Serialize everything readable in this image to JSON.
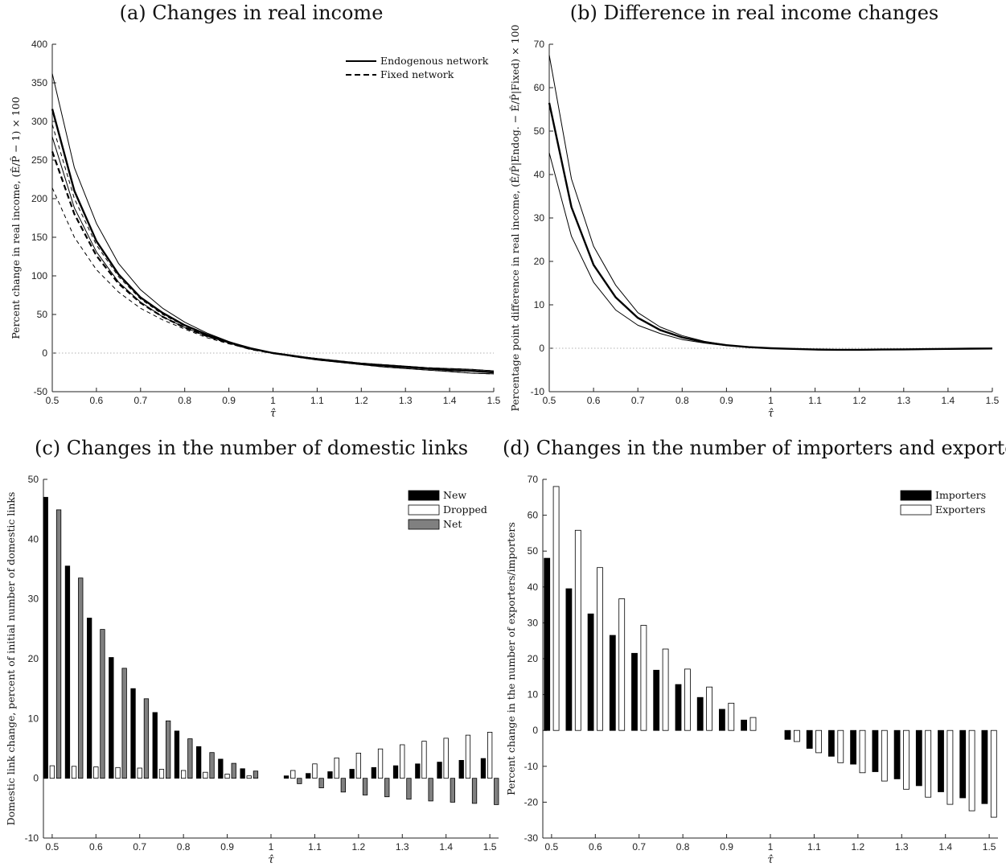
{
  "chart_data": [
    {
      "panel": "a",
      "type": "line",
      "title": "(a) Changes in real income",
      "xlabel": "τ̂",
      "ylabel": "Percent change in real income, (Ê/P̂ − 1) × 100",
      "xlim": [
        0.5,
        1.5
      ],
      "ylim": [
        -50,
        400
      ],
      "xticks": [
        0.5,
        0.6,
        0.7,
        0.8,
        0.9,
        1,
        1.1,
        1.2,
        1.3,
        1.4,
        1.5
      ],
      "yticks": [
        -50,
        0,
        50,
        100,
        150,
        200,
        250,
        300,
        350,
        400
      ],
      "legend": "top-right",
      "x": [
        0.5,
        0.55,
        0.6,
        0.65,
        0.7,
        0.75,
        0.8,
        0.85,
        0.9,
        0.95,
        1.0,
        1.05,
        1.1,
        1.15,
        1.2,
        1.25,
        1.3,
        1.35,
        1.4,
        1.45,
        1.5
      ],
      "series": [
        {
          "name": "Endogenous network",
          "style": "solid",
          "width": 2.4,
          "values": [
            316,
            210,
            145,
            102,
            72,
            52,
            36,
            24,
            14,
            6,
            0,
            -4,
            -8,
            -11,
            -14,
            -16,
            -18,
            -20,
            -22,
            -23,
            -25
          ]
        },
        {
          "style": "solid",
          "width": 1,
          "values": [
            362,
            240,
            168,
            116,
            82,
            58,
            40,
            26,
            15,
            6,
            0,
            -4,
            -7,
            -10,
            -13,
            -15,
            -17,
            -19,
            -20,
            -21,
            -23
          ]
        },
        {
          "style": "solid",
          "width": 1,
          "values": [
            280,
            188,
            131,
            92,
            66,
            47,
            33,
            22,
            13,
            5,
            0,
            -5,
            -9,
            -12,
            -15,
            -18,
            -20,
            -22,
            -24,
            -26,
            -27
          ]
        },
        {
          "name": "Fixed network",
          "style": "dashed",
          "width": 2.2,
          "values": [
            261,
            180,
            126,
            90,
            65,
            47,
            33,
            22,
            13,
            5,
            0,
            -4,
            -8,
            -11,
            -14,
            -16,
            -18,
            -20,
            -22,
            -23,
            -25
          ]
        },
        {
          "style": "dashed",
          "width": 1,
          "values": [
            296,
            200,
            140,
            99,
            70,
            50,
            35,
            23,
            13,
            5,
            0,
            -4,
            -7,
            -10,
            -13,
            -15,
            -17,
            -19,
            -20,
            -21,
            -23
          ]
        },
        {
          "style": "dashed",
          "width": 1,
          "values": [
            214,
            150,
            108,
            79,
            58,
            43,
            31,
            20,
            12,
            5,
            0,
            -5,
            -9,
            -12,
            -15,
            -18,
            -20,
            -22,
            -24,
            -26,
            -27
          ]
        }
      ],
      "zero_line": true
    },
    {
      "panel": "b",
      "type": "line",
      "title": "(b) Difference in real income changes",
      "xlabel": "τ̂",
      "ylabel": "Percentage point difference in real income, (Ê/P̂|Endog. − Ê/P̂|Fixed) × 100",
      "xlim": [
        0.5,
        1.5
      ],
      "ylim": [
        -10,
        70
      ],
      "xticks": [
        0.5,
        0.6,
        0.7,
        0.8,
        0.9,
        1,
        1.1,
        1.2,
        1.3,
        1.4,
        1.5
      ],
      "yticks": [
        -10,
        0,
        10,
        20,
        30,
        40,
        50,
        60,
        70
      ],
      "x": [
        0.5,
        0.55,
        0.6,
        0.65,
        0.7,
        0.75,
        0.8,
        0.85,
        0.9,
        0.95,
        1.0,
        1.05,
        1.1,
        1.15,
        1.2,
        1.25,
        1.3,
        1.35,
        1.4,
        1.45,
        1.5
      ],
      "series": [
        {
          "style": "solid",
          "width": 2.4,
          "values": [
            56.5,
            32.5,
            19.2,
            11.7,
            7.0,
            4.2,
            2.5,
            1.4,
            0.7,
            0.25,
            0,
            -0.15,
            -0.3,
            -0.35,
            -0.35,
            -0.3,
            -0.25,
            -0.2,
            -0.15,
            -0.1,
            -0.05
          ]
        },
        {
          "style": "solid",
          "width": 1,
          "values": [
            67.5,
            39,
            23.5,
            14.5,
            8.2,
            4.9,
            2.9,
            1.6,
            0.8,
            0.3,
            0,
            -0.15,
            -0.3,
            -0.35,
            -0.35,
            -0.3,
            -0.25,
            -0.2,
            -0.15,
            -0.1,
            -0.05
          ]
        },
        {
          "style": "solid",
          "width": 1,
          "values": [
            45,
            25.8,
            15.2,
            8.8,
            5.3,
            3.4,
            2.0,
            1.2,
            0.6,
            0.2,
            0,
            -0.15,
            -0.3,
            -0.35,
            -0.35,
            -0.3,
            -0.25,
            -0.2,
            -0.15,
            -0.1,
            -0.05
          ]
        }
      ],
      "zero_line": true
    },
    {
      "panel": "c",
      "type": "bar",
      "title": "(c) Changes in the number of domestic links",
      "xlabel": "τ̂",
      "ylabel": "Domestic link change, percent of initial number of domestic links",
      "xlim": [
        0.48,
        1.52
      ],
      "ylim": [
        -10,
        50
      ],
      "xticks": [
        0.5,
        0.6,
        0.7,
        0.8,
        0.9,
        1,
        1.1,
        1.2,
        1.3,
        1.4,
        1.5
      ],
      "yticks": [
        -10,
        0,
        10,
        20,
        30,
        40,
        50
      ],
      "legend": "top-right",
      "categories": [
        0.5,
        0.55,
        0.6,
        0.65,
        0.7,
        0.75,
        0.8,
        0.85,
        0.9,
        0.95,
        1.05,
        1.1,
        1.15,
        1.2,
        1.25,
        1.3,
        1.35,
        1.4,
        1.45,
        1.5
      ],
      "series": [
        {
          "name": "New",
          "color": "#000000",
          "values": [
            47,
            35.5,
            26.8,
            20.2,
            15,
            11,
            7.9,
            5.3,
            3.2,
            1.6,
            0.4,
            0.8,
            1.1,
            1.5,
            1.8,
            2.1,
            2.4,
            2.7,
            3.0,
            3.3
          ]
        },
        {
          "name": "Dropped",
          "color": "#ffffff",
          "values": [
            2.1,
            2.0,
            1.9,
            1.8,
            1.7,
            1.5,
            1.3,
            1.0,
            0.7,
            0.4,
            1.3,
            2.4,
            3.4,
            4.2,
            4.9,
            5.6,
            6.2,
            6.7,
            7.2,
            7.7
          ]
        },
        {
          "name": "Net",
          "color": "#808080",
          "values": [
            44.9,
            33.5,
            24.9,
            18.4,
            13.3,
            9.6,
            6.6,
            4.3,
            2.5,
            1.2,
            -0.9,
            -1.6,
            -2.3,
            -2.8,
            -3.1,
            -3.5,
            -3.8,
            -4.0,
            -4.2,
            -4.4
          ]
        }
      ]
    },
    {
      "panel": "d",
      "type": "bar",
      "title": "(d) Changes in the number of importers and exporters",
      "xlabel": "τ̂",
      "ylabel": "Percent change in the number of exporters/importers",
      "xlim": [
        0.48,
        1.52
      ],
      "ylim": [
        -30,
        70
      ],
      "xticks": [
        0.5,
        0.6,
        0.7,
        0.8,
        0.9,
        1,
        1.1,
        1.2,
        1.3,
        1.4,
        1.5
      ],
      "yticks": [
        -30,
        -20,
        -10,
        0,
        10,
        20,
        30,
        40,
        50,
        60,
        70
      ],
      "legend": "top-right",
      "categories": [
        0.5,
        0.55,
        0.6,
        0.65,
        0.7,
        0.75,
        0.8,
        0.85,
        0.9,
        0.95,
        1.05,
        1.1,
        1.15,
        1.2,
        1.25,
        1.3,
        1.35,
        1.4,
        1.45,
        1.5
      ],
      "series": [
        {
          "name": "Importers",
          "color": "#000000",
          "values": [
            48,
            39.5,
            32.5,
            26.5,
            21.5,
            16.8,
            12.8,
            9.2,
            5.9,
            2.9,
            -2.5,
            -5.0,
            -7.2,
            -9.4,
            -11.5,
            -13.5,
            -15.4,
            -17.1,
            -18.8,
            -20.4
          ]
        },
        {
          "name": "Exporters",
          "color": "#ffffff",
          "values": [
            68,
            55.8,
            45.4,
            36.7,
            29.3,
            22.7,
            17.1,
            12.1,
            7.6,
            3.6,
            -3.1,
            -6.2,
            -9.0,
            -11.8,
            -14.1,
            -16.4,
            -18.6,
            -20.6,
            -22.4,
            -24.2
          ]
        }
      ]
    }
  ]
}
